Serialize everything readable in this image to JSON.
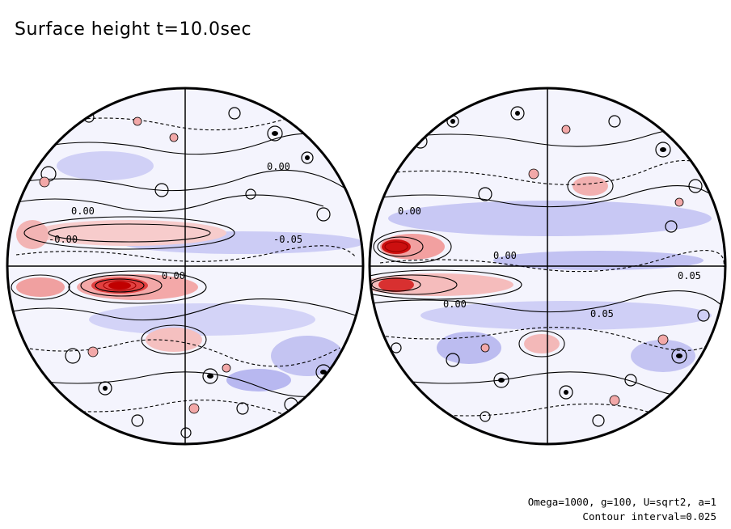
{
  "title": "Surface height t=10.0sec",
  "footer": {
    "params": "Omega=1000, g=100, U=sqrt2, a=1",
    "interval": "Contour interval=0.025"
  },
  "colors": {
    "positive": "#e03030",
    "positive_light": "#f6c6c6",
    "negative": "#8f8fe6",
    "negative_light": "#dcdcf8",
    "contour": "#000000"
  },
  "contour_labels": [
    "0.00",
    "-0.00",
    "0.00",
    "-0.05",
    "0.00",
    "0.00",
    "0.05",
    "0.00",
    "0.00",
    "0.05"
  ]
}
